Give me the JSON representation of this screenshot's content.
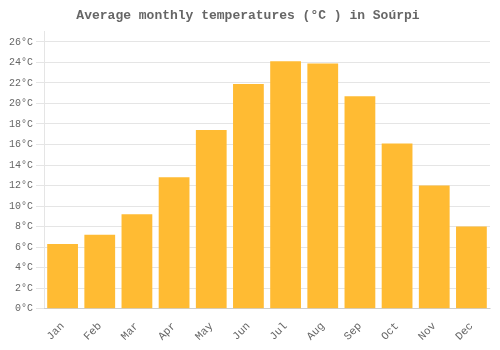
{
  "chart_data": {
    "type": "bar",
    "title": "Average monthly temperatures (°C ) in Soúrpi",
    "categories": [
      "Jan",
      "Feb",
      "Mar",
      "Apr",
      "May",
      "Jun",
      "Jul",
      "Aug",
      "Sep",
      "Oct",
      "Nov",
      "Dec"
    ],
    "values": [
      6.3,
      7.2,
      9.2,
      12.8,
      17.4,
      21.9,
      24.1,
      23.9,
      20.7,
      16.1,
      12.0,
      8.0
    ],
    "color": "#FFBB33",
    "ylim": [
      0,
      27
    ],
    "yticks": [
      {
        "value": 0,
        "label": "0°C"
      },
      {
        "value": 2,
        "label": "2°C"
      },
      {
        "value": 4,
        "label": "4°C"
      },
      {
        "value": 6,
        "label": "6°C"
      },
      {
        "value": 8,
        "label": "8°C"
      },
      {
        "value": 10,
        "label": "10°C"
      },
      {
        "value": 12,
        "label": "12°C"
      },
      {
        "value": 14,
        "label": "14°C"
      },
      {
        "value": 16,
        "label": "16°C"
      },
      {
        "value": 18,
        "label": "18°C"
      },
      {
        "value": 20,
        "label": "20°C"
      },
      {
        "value": 22,
        "label": "22°C"
      },
      {
        "value": 24,
        "label": "24°C"
      },
      {
        "value": 26,
        "label": "26°C"
      }
    ],
    "grid": true
  }
}
